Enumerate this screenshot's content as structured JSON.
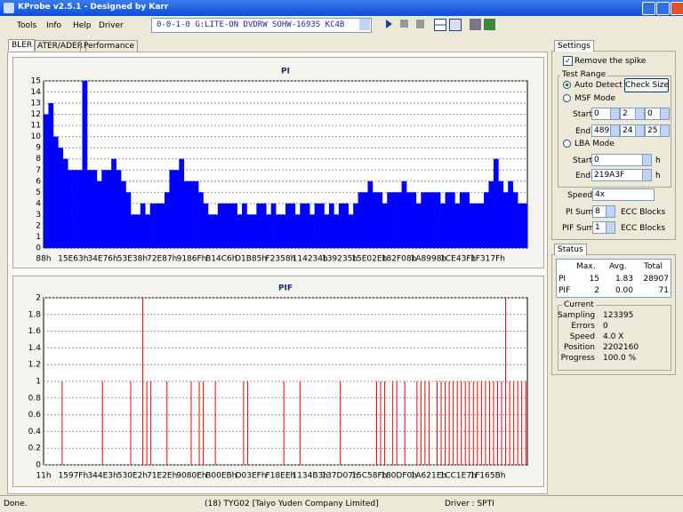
{
  "window": {
    "title": "KProbe v2.5.1 - Designed by Karr"
  },
  "menu": [
    "Tools",
    "Info",
    "Help",
    "Driver"
  ],
  "drive": "0-0-1-0 G:LITE-ON DVDRW SOHW-1693S KC4B",
  "tabs": [
    "BLER",
    "ATER/ADER",
    "Performance"
  ],
  "chart_data": [
    {
      "type": "bar",
      "title": "PI",
      "color": "#0000ff",
      "grid": true,
      "ylim": [
        0,
        15
      ],
      "yticks": [
        0,
        1,
        2,
        3,
        4,
        5,
        6,
        7,
        8,
        9,
        10,
        11,
        12,
        13,
        14,
        15
      ],
      "xtick_labels": [
        "88h",
        "15E63h",
        "34E76h",
        "53E38h",
        "72E87h",
        "9186Fh",
        "B14C6h",
        "D1B85h",
        "F2358h",
        "114234h",
        "139235h",
        "15E02Eh",
        "182F08h",
        "1A8998h",
        "1CE43Fh",
        "1F317Fh"
      ],
      "values": [
        12,
        13,
        10,
        9,
        8,
        7,
        7,
        7,
        15,
        7,
        7,
        6,
        7,
        7,
        8,
        7,
        6,
        5,
        3,
        3,
        4,
        3,
        4,
        4,
        4,
        5,
        7,
        7,
        8,
        6,
        6,
        6,
        5,
        4,
        3,
        3,
        4,
        4,
        4,
        4,
        3,
        4,
        3,
        3,
        4,
        4,
        3,
        4,
        3,
        3,
        4,
        4,
        3,
        4,
        4,
        3,
        4,
        4,
        3,
        4,
        3,
        4,
        4,
        3,
        4,
        5,
        5,
        6,
        5,
        5,
        4,
        5,
        5,
        5,
        6,
        5,
        5,
        4,
        5,
        5,
        5,
        5,
        4,
        5,
        5,
        4,
        5,
        5,
        4,
        4,
        4,
        5,
        6,
        8,
        6,
        5,
        6,
        5,
        4,
        4
      ]
    },
    {
      "type": "bar",
      "title": "PIF",
      "color": "#ff0000",
      "grid": true,
      "ylim": [
        0,
        2
      ],
      "yticks": [
        0,
        0.2,
        0.4,
        0.6,
        0.8,
        1,
        1.2,
        1.4,
        1.6,
        1.8,
        2
      ],
      "xtick_labels": [
        "11h",
        "1597Fh",
        "344E3h",
        "530E2h",
        "71E2Eh",
        "9080Eh",
        "B00EBh",
        "D03EFh",
        "F18EEh",
        "1134B3h",
        "137D07h",
        "15C58Fh",
        "180DF0h",
        "1A621Eh",
        "1CC1E7h",
        "1F165Bh"
      ],
      "values": [
        0,
        0,
        0,
        0,
        1,
        0,
        0,
        0,
        0,
        0,
        0,
        0,
        0,
        0,
        1,
        0,
        0,
        0,
        0,
        0,
        0,
        1,
        0,
        0,
        2,
        1,
        1,
        0,
        0,
        0,
        1,
        0,
        0,
        0,
        0,
        0,
        1,
        0,
        1,
        1,
        0,
        0,
        1,
        0,
        0,
        0,
        0,
        0,
        0,
        1,
        1,
        0,
        0,
        0,
        0,
        0,
        0,
        0,
        0,
        1,
        0,
        0,
        0,
        1,
        0,
        0,
        0,
        0,
        0,
        0,
        0,
        0,
        0,
        1,
        0,
        0,
        0,
        0,
        0,
        0,
        0,
        0,
        1,
        1,
        1,
        0,
        1,
        1,
        0,
        1,
        0,
        0,
        1,
        1,
        1,
        1,
        0,
        1,
        1,
        1,
        1,
        1,
        1,
        1,
        1,
        1,
        1,
        1,
        1,
        1,
        1,
        1,
        1,
        1,
        2,
        1,
        1,
        1,
        1,
        1
      ]
    }
  ],
  "settings": {
    "title": "Settings",
    "remove_spike": "Remove the spike",
    "test_range": "Test Range",
    "auto_detect": "Auto Detect",
    "check_size": "Check Size",
    "msf_mode": "MSF Mode",
    "start_label": "Start",
    "end_label": "End",
    "msf_start": [
      "0",
      "2",
      "0"
    ],
    "msf_end": [
      "489",
      "24",
      "25"
    ],
    "lba_mode": "LBA Mode",
    "lba_start": "0",
    "lba_end": "219A3F",
    "hex_unit": "h",
    "speed_label": "Speed",
    "speed": "4x",
    "pi_sum_label": "PI Sum",
    "pi_sum": "8",
    "pif_sum_label": "PIF Sum",
    "pif_sum": "1",
    "ecc_blocks": "ECC Blocks"
  },
  "status": {
    "title": "Status",
    "headers": [
      "Max.",
      "Avg.",
      "Total"
    ],
    "rows": [
      [
        "PI",
        "15",
        "1.83",
        "28907"
      ],
      [
        "PIF",
        "2",
        "0.00",
        "71"
      ]
    ],
    "current_title": "Current",
    "current": [
      [
        "Sampling",
        "123395"
      ],
      [
        "Errors",
        "0"
      ],
      [
        "Speed",
        "4.0  X"
      ],
      [
        "Position",
        "2202160"
      ],
      [
        "Progress",
        "100.0 %"
      ]
    ]
  },
  "statusbar": [
    "Done.",
    "(18) TYG02 [Taiyo Yuden Company Limited]",
    "Driver : SPTI"
  ]
}
